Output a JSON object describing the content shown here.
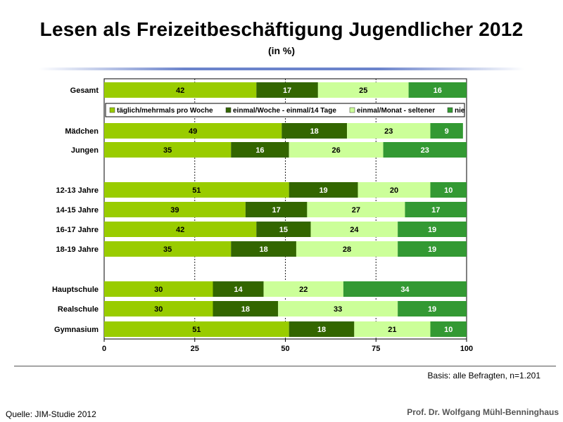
{
  "title": "Lesen als Freizeitbeschäftigung Jugendlicher 2012",
  "subtitle": "(in %)",
  "basis": "Basis: alle Befragten,  n=1.201",
  "source": "Quelle: JIM-Studie 2012",
  "author": "Prof. Dr. Wolfgang Mühl-Benninghaus",
  "chart_data": {
    "type": "bar",
    "orientation": "horizontal",
    "stacked": true,
    "xlim": [
      0,
      100
    ],
    "xticks": [
      "0",
      "25",
      "50",
      "75",
      "100"
    ],
    "legend_position": "below-first-bar",
    "grid": "dashed vertical at 25, 50, 75",
    "categories": [
      "Gesamt",
      "Mädchen",
      "Jungen",
      "12-13 Jahre",
      "14-15 Jahre",
      "16-17 Jahre",
      "18-19 Jahre",
      "Hauptschule",
      "Realschule",
      "Gymnasium"
    ],
    "groups": [
      [
        "Gesamt"
      ],
      [
        "Mädchen",
        "Jungen"
      ],
      [
        "12-13 Jahre",
        "14-15 Jahre",
        "16-17 Jahre",
        "18-19 Jahre"
      ],
      [
        "Hauptschule",
        "Realschule",
        "Gymnasium"
      ]
    ],
    "series": [
      {
        "name": "täglich/mehrmals pro Woche",
        "color": "#99cc00",
        "values": [
          42,
          49,
          35,
          51,
          39,
          42,
          35,
          30,
          30,
          51
        ]
      },
      {
        "name": "einmal/Woche - einmal/14 Tage",
        "color": "#336600",
        "values": [
          17,
          18,
          16,
          19,
          17,
          15,
          18,
          14,
          18,
          18
        ]
      },
      {
        "name": "einmal/Monat - seltener",
        "color": "#ccff99",
        "values": [
          25,
          23,
          26,
          20,
          27,
          24,
          28,
          22,
          33,
          21
        ]
      },
      {
        "name": "nie",
        "color": "#339933",
        "values": [
          16,
          9,
          23,
          10,
          17,
          19,
          19,
          34,
          19,
          10
        ]
      }
    ]
  }
}
